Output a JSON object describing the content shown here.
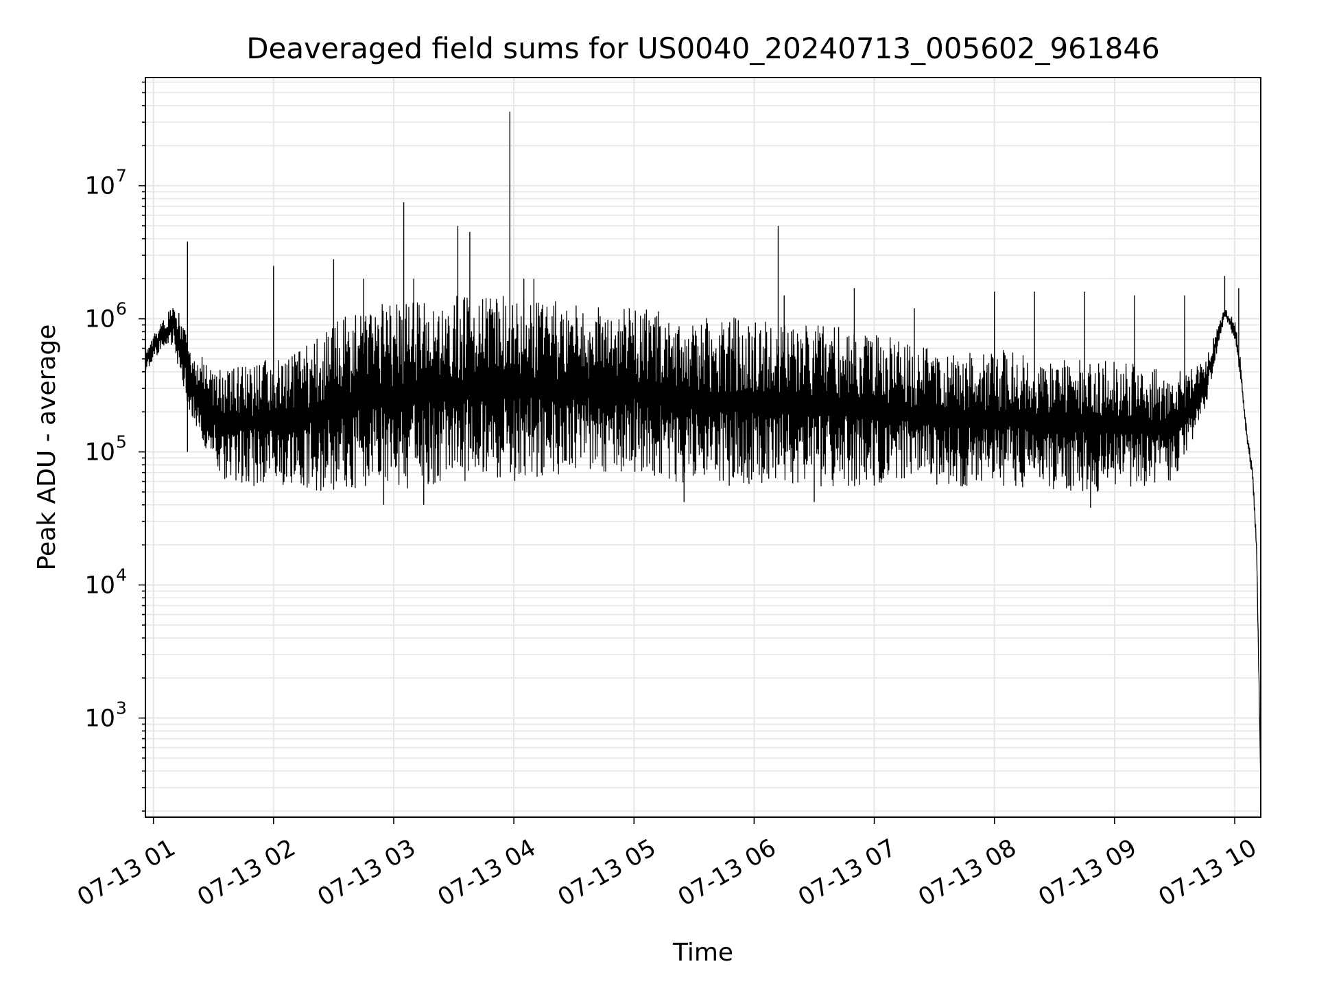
{
  "chart_data": {
    "type": "line",
    "title": "Deaveraged field sums for US0040_20240713_005602_961846",
    "xlabel": "Time",
    "ylabel": "Peak ADU - average",
    "x_range": [
      "2024-07-13 00:56",
      "2024-07-13 10:13"
    ],
    "ylim": [
      180,
      65000000
    ],
    "yscale": "log",
    "grid": true,
    "line_color": "#000000",
    "grid_color": "#e6e6e6",
    "x_ticks": [
      {
        "label": "07-13 01",
        "time": "2024-07-13 01:00"
      },
      {
        "label": "07-13 02",
        "time": "2024-07-13 02:00"
      },
      {
        "label": "07-13 03",
        "time": "2024-07-13 03:00"
      },
      {
        "label": "07-13 04",
        "time": "2024-07-13 04:00"
      },
      {
        "label": "07-13 05",
        "time": "2024-07-13 05:00"
      },
      {
        "label": "07-13 06",
        "time": "2024-07-13 06:00"
      },
      {
        "label": "07-13 07",
        "time": "2024-07-13 07:00"
      },
      {
        "label": "07-13 08",
        "time": "2024-07-13 08:00"
      },
      {
        "label": "07-13 09",
        "time": "2024-07-13 09:00"
      },
      {
        "label": "07-13 10",
        "time": "2024-07-13 10:00"
      }
    ],
    "y_ticks": [
      {
        "base": "10",
        "exp": "3",
        "value": 1000
      },
      {
        "base": "10",
        "exp": "4",
        "value": 10000
      },
      {
        "base": "10",
        "exp": "5",
        "value": 100000
      },
      {
        "base": "10",
        "exp": "6",
        "value": 1000000
      },
      {
        "base": "10",
        "exp": "7",
        "value": 10000000
      }
    ],
    "series": [
      {
        "upper": [
          [
            "2024-07-13 00:56",
            600000
          ],
          [
            "2024-07-13 01:05",
            1000000
          ],
          [
            "2024-07-13 01:10",
            1400000
          ],
          [
            "2024-07-13 01:20",
            600000
          ],
          [
            "2024-07-13 01:35",
            400000
          ],
          [
            "2024-07-13 01:50",
            500000
          ],
          [
            "2024-07-13 02:05",
            500000
          ],
          [
            "2024-07-13 02:25",
            800000
          ],
          [
            "2024-07-13 02:40",
            1200000
          ],
          [
            "2024-07-13 03:00",
            1400000
          ],
          [
            "2024-07-13 03:30",
            1500000
          ],
          [
            "2024-07-13 04:00",
            1500000
          ],
          [
            "2024-07-13 04:30",
            1300000
          ],
          [
            "2024-07-13 05:00",
            1200000
          ],
          [
            "2024-07-13 05:30",
            1100000
          ],
          [
            "2024-07-13 06:00",
            1000000
          ],
          [
            "2024-07-13 06:30",
            950000
          ],
          [
            "2024-07-13 07:00",
            800000
          ],
          [
            "2024-07-13 07:30",
            600000
          ],
          [
            "2024-07-13 08:00",
            600000
          ],
          [
            "2024-07-13 08:30",
            500000
          ],
          [
            "2024-07-13 09:00",
            500000
          ],
          [
            "2024-07-13 09:30",
            400000
          ],
          [
            "2024-07-13 09:45",
            500000
          ],
          [
            "2024-07-13 09:55",
            1200000
          ],
          [
            "2024-07-13 10:00",
            1000000
          ],
          [
            "2024-07-13 10:03",
            500000
          ],
          [
            "2024-07-13 10:06",
            150000
          ],
          [
            "2024-07-13 10:09",
            80000
          ],
          [
            "2024-07-13 10:11",
            20000
          ],
          [
            "2024-07-13 10:12",
            3000
          ],
          [
            "2024-07-13 10:13",
            300
          ]
        ],
        "lower": [
          [
            "2024-07-13 00:56",
            400000
          ],
          [
            "2024-07-13 01:05",
            600000
          ],
          [
            "2024-07-13 01:10",
            600000
          ],
          [
            "2024-07-13 01:20",
            150000
          ],
          [
            "2024-07-13 01:35",
            60000
          ],
          [
            "2024-07-13 01:50",
            55000
          ],
          [
            "2024-07-13 02:05",
            55000
          ],
          [
            "2024-07-13 02:25",
            50000
          ],
          [
            "2024-07-13 02:40",
            50000
          ],
          [
            "2024-07-13 03:00",
            50000
          ],
          [
            "2024-07-13 03:30",
            55000
          ],
          [
            "2024-07-13 04:00",
            60000
          ],
          [
            "2024-07-13 04:30",
            70000
          ],
          [
            "2024-07-13 05:00",
            70000
          ],
          [
            "2024-07-13 05:30",
            55000
          ],
          [
            "2024-07-13 06:00",
            55000
          ],
          [
            "2024-07-13 06:30",
            55000
          ],
          [
            "2024-07-13 07:00",
            55000
          ],
          [
            "2024-07-13 07:30",
            55000
          ],
          [
            "2024-07-13 08:00",
            55000
          ],
          [
            "2024-07-13 08:30",
            50000
          ],
          [
            "2024-07-13 09:00",
            50000
          ],
          [
            "2024-07-13 09:30",
            60000
          ],
          [
            "2024-07-13 09:45",
            200000
          ],
          [
            "2024-07-13 09:55",
            1000000
          ],
          [
            "2024-07-13 10:00",
            700000
          ],
          [
            "2024-07-13 10:03",
            300000
          ],
          [
            "2024-07-13 10:06",
            120000
          ],
          [
            "2024-07-13 10:09",
            60000
          ],
          [
            "2024-07-13 10:11",
            15000
          ],
          [
            "2024-07-13 10:12",
            2000
          ],
          [
            "2024-07-13 10:13",
            300
          ]
        ],
        "spikes": [
          [
            "2024-07-13 01:17",
            3800000
          ],
          [
            "2024-07-13 01:17",
            100000
          ],
          [
            "2024-07-13 02:00",
            2500000
          ],
          [
            "2024-07-13 02:30",
            2800000
          ],
          [
            "2024-07-13 02:45",
            2000000
          ],
          [
            "2024-07-13 03:05",
            7500000
          ],
          [
            "2024-07-13 03:10",
            2000000
          ],
          [
            "2024-07-13 03:32",
            5000000
          ],
          [
            "2024-07-13 03:38",
            4500000
          ],
          [
            "2024-07-13 03:58",
            36000000
          ],
          [
            "2024-07-13 04:05",
            2000000
          ],
          [
            "2024-07-13 04:10",
            2000000
          ],
          [
            "2024-07-13 06:12",
            5000000
          ],
          [
            "2024-07-13 06:15",
            1500000
          ],
          [
            "2024-07-13 06:50",
            1700000
          ],
          [
            "2024-07-13 07:20",
            1200000
          ],
          [
            "2024-07-13 08:00",
            1600000
          ],
          [
            "2024-07-13 08:20",
            1600000
          ],
          [
            "2024-07-13 08:45",
            1600000
          ],
          [
            "2024-07-13 09:10",
            1500000
          ],
          [
            "2024-07-13 09:35",
            1500000
          ],
          [
            "2024-07-13 09:55",
            2100000
          ],
          [
            "2024-07-13 10:02",
            1700000
          ],
          [
            "2024-07-13 02:55",
            40000
          ],
          [
            "2024-07-13 03:15",
            40000
          ],
          [
            "2024-07-13 08:48",
            38000
          ],
          [
            "2024-07-13 06:30",
            42000
          ],
          [
            "2024-07-13 05:25",
            42000
          ]
        ]
      }
    ]
  }
}
